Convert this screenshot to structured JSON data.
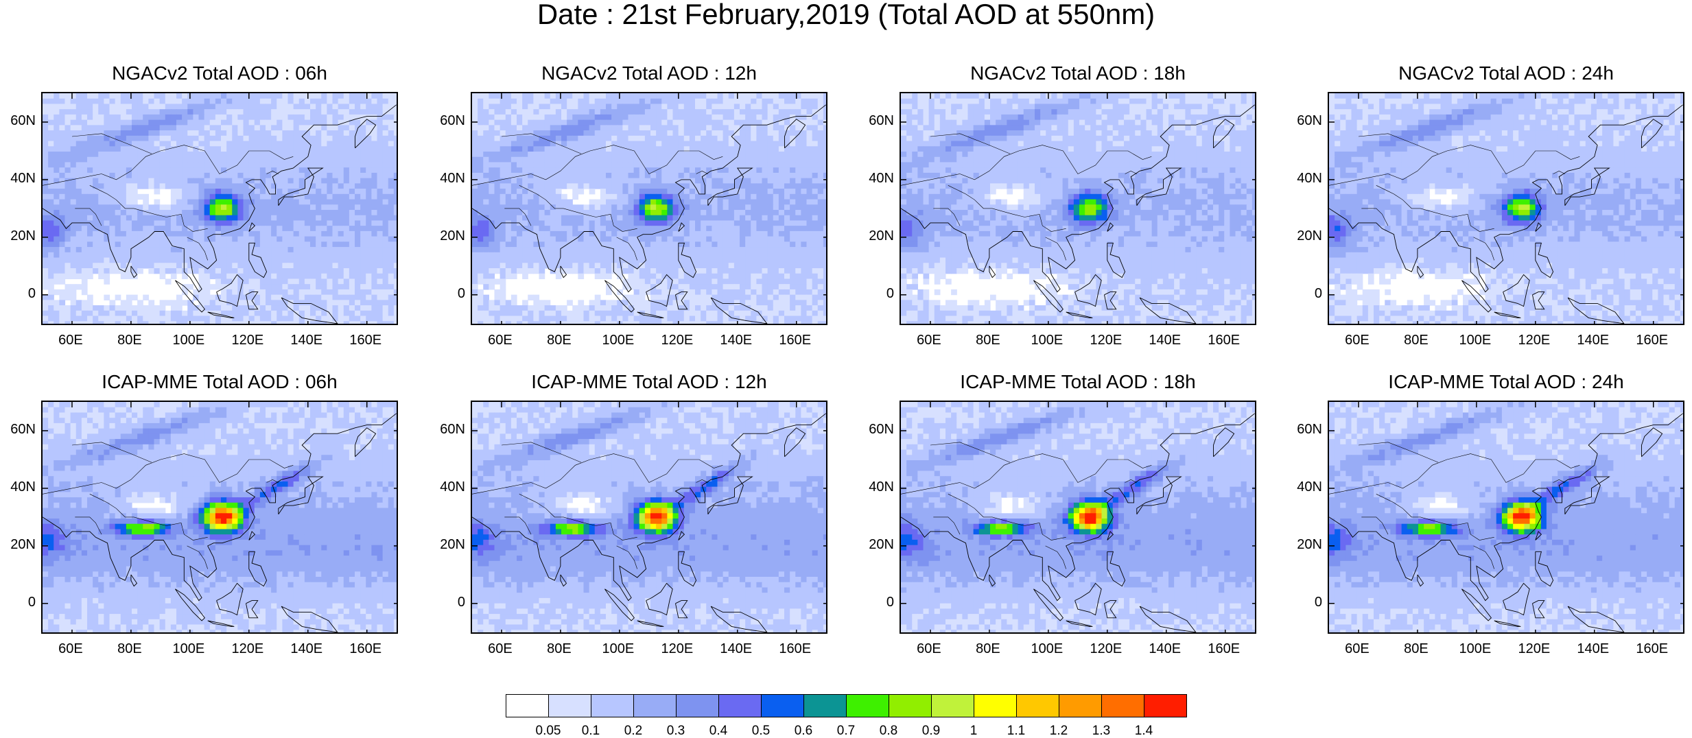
{
  "title": "Date : 21st February,2019 (Total AOD at 550nm)",
  "panels": [
    {
      "title": "NGACv2 Total AOD : 06h"
    },
    {
      "title": "NGACv2 Total AOD : 12h"
    },
    {
      "title": "NGACv2 Total AOD : 18h"
    },
    {
      "title": "NGACv2 Total AOD : 24h"
    },
    {
      "title": "ICAP-MME Total AOD : 06h"
    },
    {
      "title": "ICAP-MME Total AOD : 12h"
    },
    {
      "title": "ICAP-MME Total AOD : 18h"
    },
    {
      "title": "ICAP-MME Total AOD : 24h"
    }
  ],
  "axes": {
    "y_ticks": [
      "60N",
      "40N",
      "20N",
      "0"
    ],
    "x_ticks": [
      "60E",
      "80E",
      "100E",
      "120E",
      "140E",
      "160E"
    ]
  },
  "colorbar": {
    "colors": [
      "#ffffff",
      "#d7e0ff",
      "#b7c6ff",
      "#98acf6",
      "#7e93f0",
      "#6a6af2",
      "#0a5ff0",
      "#0c9494",
      "#3ef000",
      "#91ee00",
      "#c0f23a",
      "#ffff00",
      "#ffc800",
      "#ff9b00",
      "#ff6e00",
      "#ff1e00"
    ],
    "labels": [
      "0.05",
      "0.1",
      "0.2",
      "0.3",
      "0.4",
      "0.5",
      "0.6",
      "0.7",
      "0.8",
      "0.9",
      "1",
      "1.1",
      "1.2",
      "1.3",
      "1.4"
    ]
  }
}
